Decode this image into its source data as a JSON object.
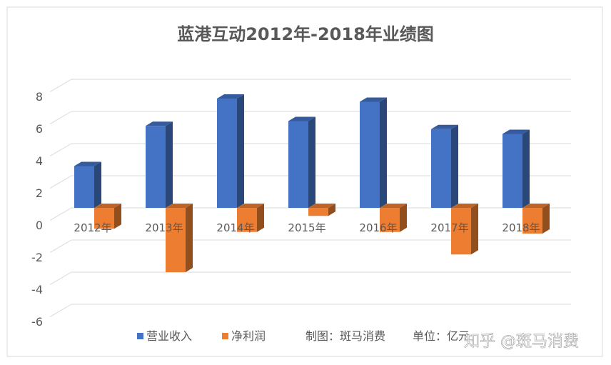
{
  "chart_data": {
    "type": "bar",
    "title": "蓝港互动2012年-2018年业绩图",
    "categories": [
      "2012年",
      "2013年",
      "2014年",
      "2015年",
      "2016年",
      "2017年",
      "2018年"
    ],
    "series": [
      {
        "name": "营业收入",
        "color": "#4472C4",
        "values": [
          2.6,
          5.1,
          6.8,
          5.4,
          6.6,
          4.9,
          4.6
        ]
      },
      {
        "name": "净利润",
        "color": "#ED7D31",
        "values": [
          -1.3,
          -4.0,
          -1.5,
          -0.5,
          -1.5,
          -2.9,
          -1.6
        ]
      }
    ],
    "yticks": [
      8,
      6,
      4,
      2,
      0,
      -2,
      -4,
      -6
    ],
    "ylim": [
      -6,
      8
    ],
    "grid": true,
    "legend_position": "bottom"
  },
  "legend": {
    "note_maker": "制图：斑马消费",
    "note_unit": "单位：亿元"
  },
  "watermark": "知乎 @斑马消费"
}
